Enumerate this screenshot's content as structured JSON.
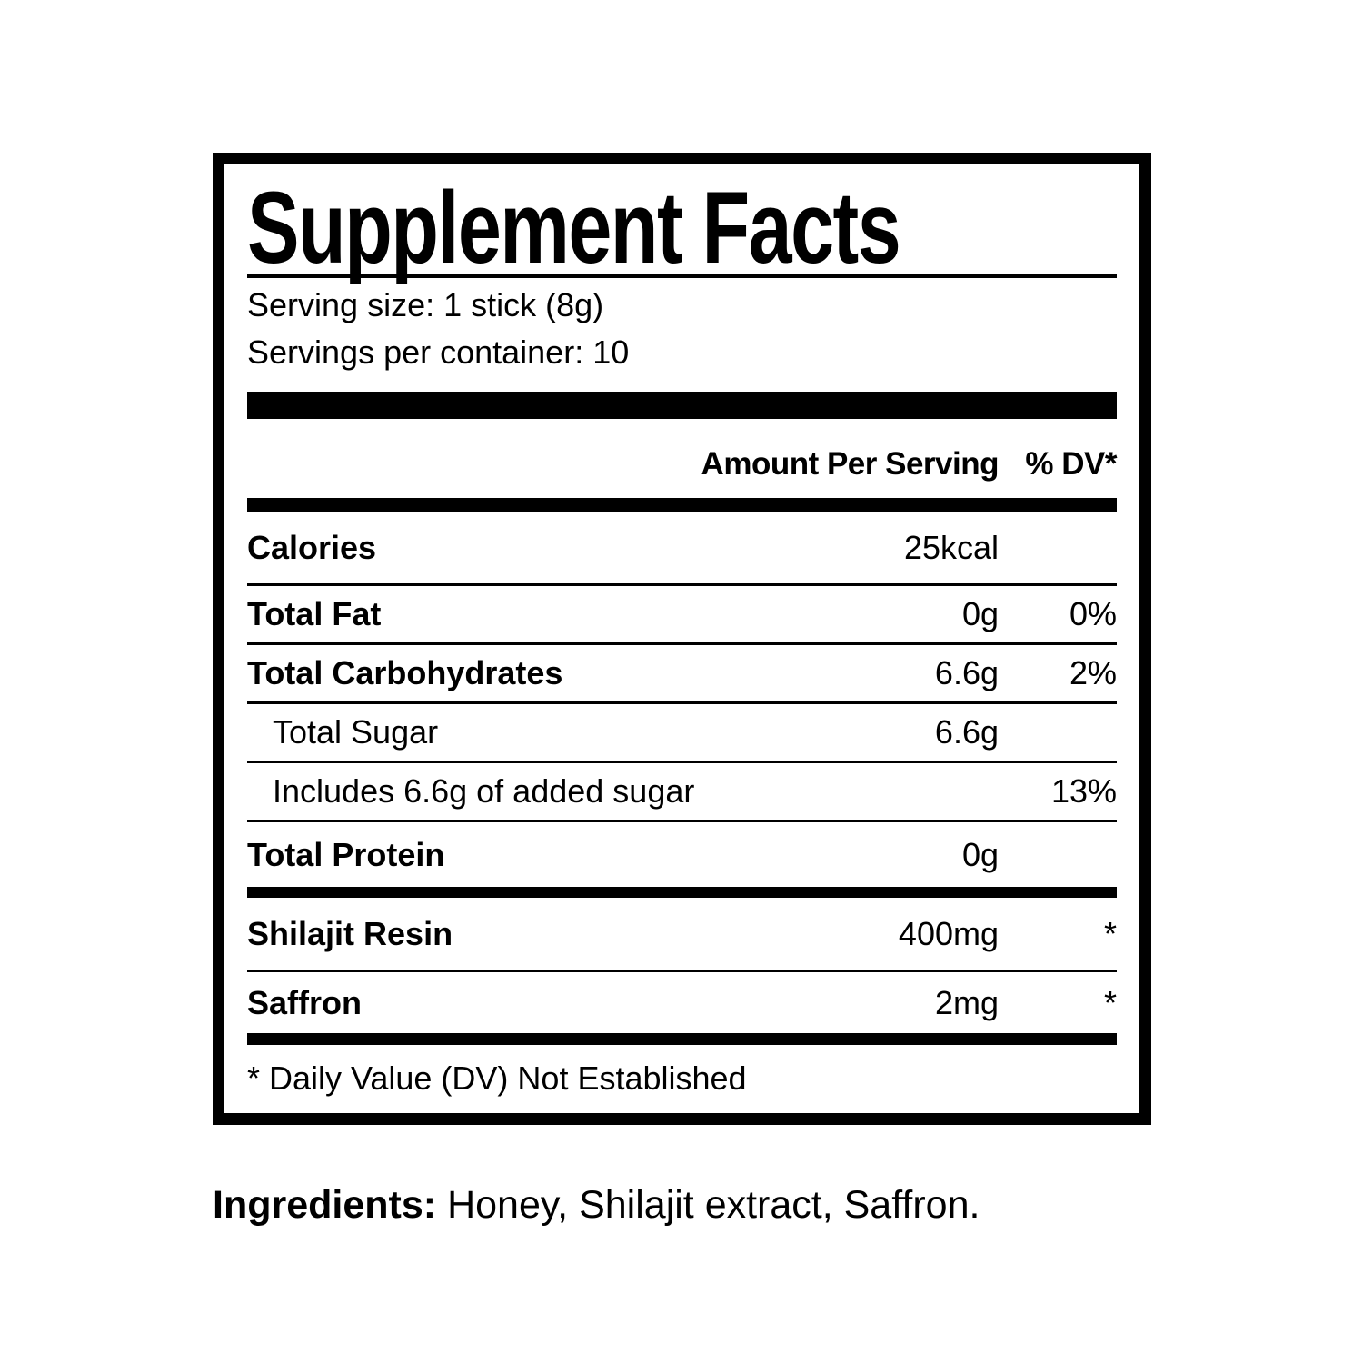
{
  "colors": {
    "text": "#000000",
    "background": "#ffffff"
  },
  "label": {
    "title": "Supplement Facts",
    "serving_size": "Serving size: 1 stick (8g)",
    "servings_per_container": "Servings per container: 10",
    "columns": {
      "amount": "Amount Per Serving",
      "dv": "% DV*"
    },
    "nutrients": [
      {
        "name": "Calories",
        "amount": "25kcal",
        "dv": ""
      },
      {
        "name": "Total Fat",
        "amount": "0g",
        "dv": "0%"
      },
      {
        "name": "Total Carbohydrates",
        "amount": "6.6g",
        "dv": "2%"
      },
      {
        "name": "Total Sugar",
        "amount": "6.6g",
        "dv": ""
      },
      {
        "name": "Includes 6.6g of added sugar",
        "amount": "",
        "dv": "13%"
      },
      {
        "name": "Total Protein",
        "amount": "0g",
        "dv": ""
      }
    ],
    "actives": [
      {
        "name": "Shilajit Resin",
        "amount": "400mg",
        "dv": "*"
      },
      {
        "name": "Saffron",
        "amount": "2mg",
        "dv": "*"
      }
    ],
    "footnote": "* Daily Value (DV) Not Established"
  },
  "ingredients": {
    "label": "Ingredients:",
    "text": "Honey, Shilajit extract, Saffron."
  }
}
